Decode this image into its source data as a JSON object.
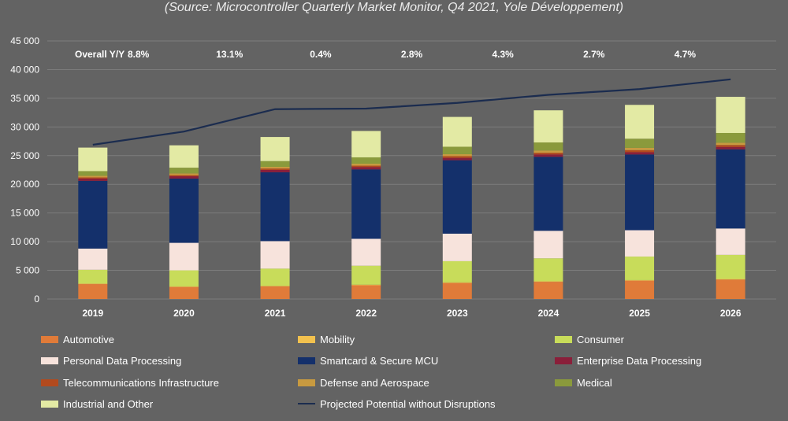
{
  "subtitle": "(Source: Microcontroller Quarterly Market Monitor, Q4 2021, Yole Développement)",
  "yoy_row": {
    "label": "Overall Y/Y",
    "values": [
      "8.8%",
      "13.1%",
      "0.4%",
      "2.8%",
      "4.3%",
      "2.7%",
      "4.7%"
    ]
  },
  "chart_data": {
    "type": "bar",
    "stacked": true,
    "categories": [
      "2019",
      "2020",
      "2021",
      "2022",
      "2023",
      "2024",
      "2025",
      "2026"
    ],
    "ylim": [
      0,
      45000
    ],
    "yticks": [
      0,
      5000,
      10000,
      15000,
      20000,
      25000,
      30000,
      35000,
      40000,
      45000
    ],
    "ytick_labels": [
      "0",
      "5 000",
      "10 000",
      "15 000",
      "20 000",
      "25 000",
      "30 000",
      "35 000",
      "40 000",
      "45 000"
    ],
    "grid": true,
    "legend_position": "bottom",
    "series": [
      {
        "name": "Automotive",
        "color": "#e07b39",
        "values": [
          2600,
          2100,
          2200,
          2400,
          2800,
          3000,
          3200,
          3400
        ]
      },
      {
        "name": "Mobility",
        "color": "#f2c14e",
        "values": [
          100,
          100,
          100,
          100,
          100,
          100,
          100,
          100
        ]
      },
      {
        "name": "Consumer",
        "color": "#c8dc5a",
        "values": [
          2400,
          2800,
          3000,
          3300,
          3700,
          4000,
          4100,
          4200
        ]
      },
      {
        "name": "Personal Data Processing",
        "color": "#f7e3dc",
        "values": [
          3700,
          4800,
          4800,
          4700,
          4800,
          4800,
          4600,
          4600
        ]
      },
      {
        "name": "Smartcard & Secure MCU",
        "color": "#14306b",
        "values": [
          11800,
          11200,
          12000,
          12100,
          12800,
          12900,
          13200,
          13800
        ]
      },
      {
        "name": "Enterprise Data Processing",
        "color": "#8a1f3a",
        "values": [
          400,
          400,
          400,
          400,
          400,
          400,
          400,
          400
        ]
      },
      {
        "name": "Telecommunications Infrastructure",
        "color": "#b24a1e",
        "values": [
          200,
          200,
          250,
          250,
          300,
          300,
          350,
          350
        ]
      },
      {
        "name": "Defense and Aerospace",
        "color": "#c89a40",
        "values": [
          300,
          300,
          300,
          350,
          350,
          400,
          400,
          400
        ]
      },
      {
        "name": "Medical",
        "color": "#8a9a3c",
        "values": [
          800,
          1000,
          1000,
          1100,
          1300,
          1400,
          1600,
          1700
        ]
      },
      {
        "name": "Industrial and Other",
        "color": "#e3eaa4",
        "values": [
          4100,
          3900,
          4200,
          4600,
          5200,
          5600,
          5900,
          6300
        ]
      }
    ],
    "line": {
      "name": "Projected Potential without Disruptions",
      "color": "#1b2c4f",
      "values": [
        26900,
        29200,
        33100,
        33200,
        34200,
        35600,
        36600,
        38300
      ]
    }
  }
}
